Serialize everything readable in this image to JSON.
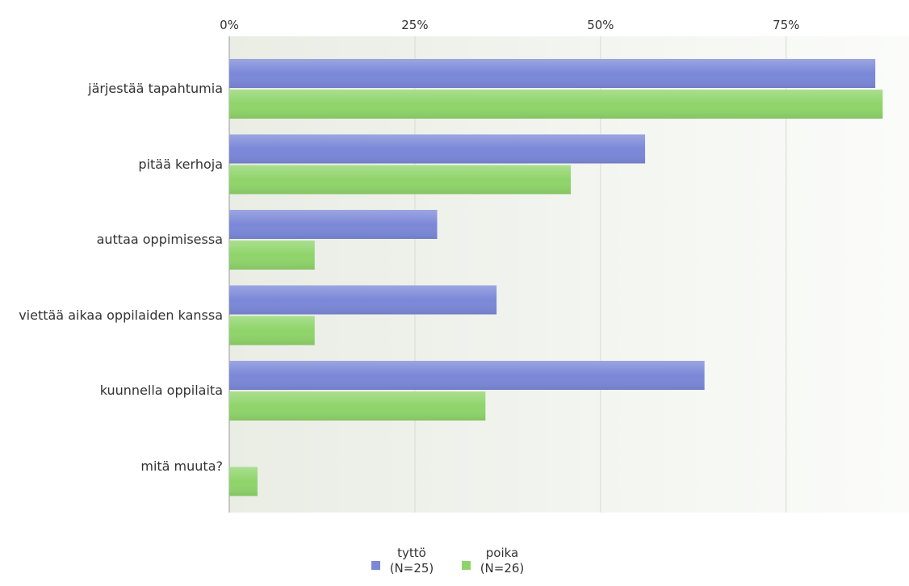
{
  "chart_data": {
    "type": "hbar",
    "categories": [
      "järjestää tapahtumia",
      "pitää kerhoja",
      "auttaa oppimisessa",
      "viettää aikaa oppilaiden kanssa",
      "kuunnella oppilaita",
      "mitä muuta?"
    ],
    "series": [
      {
        "name": "tyttö (N=25)",
        "color": "#7b88d8",
        "values": [
          87,
          56,
          28,
          36,
          64,
          0
        ]
      },
      {
        "name": "poika (N=26)",
        "color": "#8fd46a",
        "values": [
          88,
          46,
          11.5,
          11.5,
          34.5,
          3.8
        ]
      }
    ],
    "xlim": [
      0,
      91
    ],
    "xticks": [
      {
        "value": 0,
        "label": "0%"
      },
      {
        "value": 25,
        "label": "25%"
      },
      {
        "value": 50,
        "label": "50%"
      },
      {
        "value": 75,
        "label": "75%"
      }
    ],
    "grid": true
  }
}
